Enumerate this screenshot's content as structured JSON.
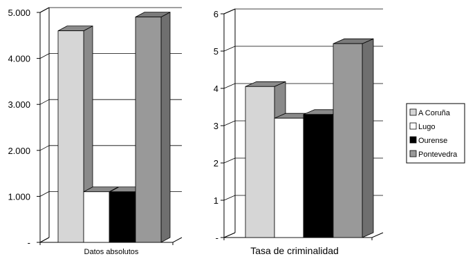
{
  "chart_data": [
    {
      "type": "bar",
      "categories": [
        "Datos absolutos"
      ],
      "series": [
        {
          "name": "A Coruña",
          "values": [
            4600
          ]
        },
        {
          "name": "Lugo",
          "values": [
            1100
          ]
        },
        {
          "name": "Ourense",
          "values": [
            1100
          ]
        },
        {
          "name": "Pontevedra",
          "values": [
            4900
          ]
        }
      ],
      "ylim": [
        0,
        5000
      ],
      "yticks": [
        "-",
        "1.000",
        "2.000",
        "3.000",
        "4.000",
        "5.000"
      ],
      "xlabel": "Datos absolutos",
      "ylabel": "",
      "grid": true,
      "style": "3d"
    },
    {
      "type": "bar",
      "categories": [
        "Tasa de criminalidad"
      ],
      "series": [
        {
          "name": "A Coruña",
          "values": [
            4.05
          ]
        },
        {
          "name": "Lugo",
          "values": [
            3.2
          ]
        },
        {
          "name": "Ourense",
          "values": [
            3.3
          ]
        },
        {
          "name": "Pontevedra",
          "values": [
            5.2
          ]
        }
      ],
      "ylim": [
        0,
        6
      ],
      "yticks": [
        "-",
        "1",
        "2",
        "3",
        "4",
        "5",
        "6"
      ],
      "xlabel": "Tasa de criminalidad",
      "ylabel": "",
      "grid": true,
      "style": "3d"
    }
  ],
  "legend": {
    "placement": "right",
    "items": [
      {
        "label": "A Coruña",
        "color": "#d6d6d6"
      },
      {
        "label": "Lugo",
        "color": "#ffffff"
      },
      {
        "label": "Ourense",
        "color": "#000000"
      },
      {
        "label": "Pontevedra",
        "color": "#999999"
      }
    ]
  },
  "colors": {
    "A Coruña": {
      "front": "#d6d6d6",
      "side": "#8a8a8a",
      "top": "#8a8a8a"
    },
    "Lugo": {
      "front": "#ffffff",
      "side": "#8a8a8a",
      "top": "#8a8a8a"
    },
    "Ourense": {
      "front": "#000000",
      "side": "#8a8a8a",
      "top": "#8a8a8a"
    },
    "Pontevedra": {
      "front": "#999999",
      "side": "#6f6f6f",
      "top": "#7a7a7a"
    }
  }
}
